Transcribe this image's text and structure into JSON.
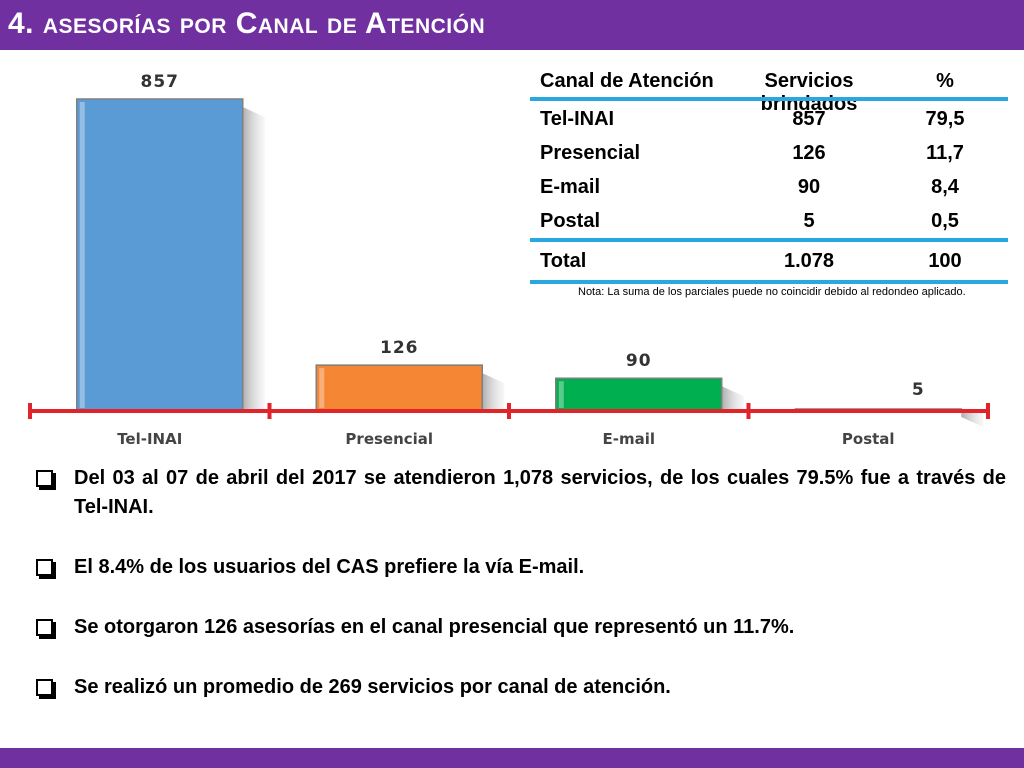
{
  "header": {
    "title": "4. asesorías por Canal de Atención",
    "bar_color": "#7030a0"
  },
  "chart_data": {
    "type": "bar",
    "categories": [
      "Tel-INAI",
      "Presencial",
      "E-mail",
      "Postal"
    ],
    "values": [
      857,
      126,
      90,
      5
    ],
    "data_labels": [
      "857",
      "126",
      "90",
      "5"
    ],
    "colors": [
      "#5b9bd5",
      "#f58634",
      "#00b050",
      "#7030a0"
    ],
    "title": "",
    "xlabel": "",
    "ylabel": "",
    "ylim": [
      0,
      857
    ],
    "grid": false,
    "legend": "none",
    "axis_color": "#e0242b"
  },
  "table": {
    "headers": [
      "Canal de Atención",
      "Servicios brindados",
      "%"
    ],
    "rows": [
      [
        "Tel-INAI",
        "857",
        "79,5"
      ],
      [
        "Presencial",
        "126",
        "11,7"
      ],
      [
        "E-mail",
        "90",
        "8,4"
      ],
      [
        "Postal",
        "5",
        "0,5"
      ]
    ],
    "total": [
      "Total",
      "1.078",
      "100"
    ],
    "rule_color": "#29a8e0"
  },
  "note": "Nota: La suma de los parciales puede no coincidir debido al redondeo aplicado.",
  "bullets": [
    "Del 03 al 07 de abril del 2017 se atendieron 1,078 servicios, de los cuales 79.5% fue a través de Tel-INAI.",
    "El 8.4% de los usuarios del CAS prefiere la vía E-mail.",
    "Se otorgaron 126 asesorías en el canal presencial que representó un 11.7%.",
    "Se realizó un promedio de 269 servicios por canal de atención."
  ]
}
